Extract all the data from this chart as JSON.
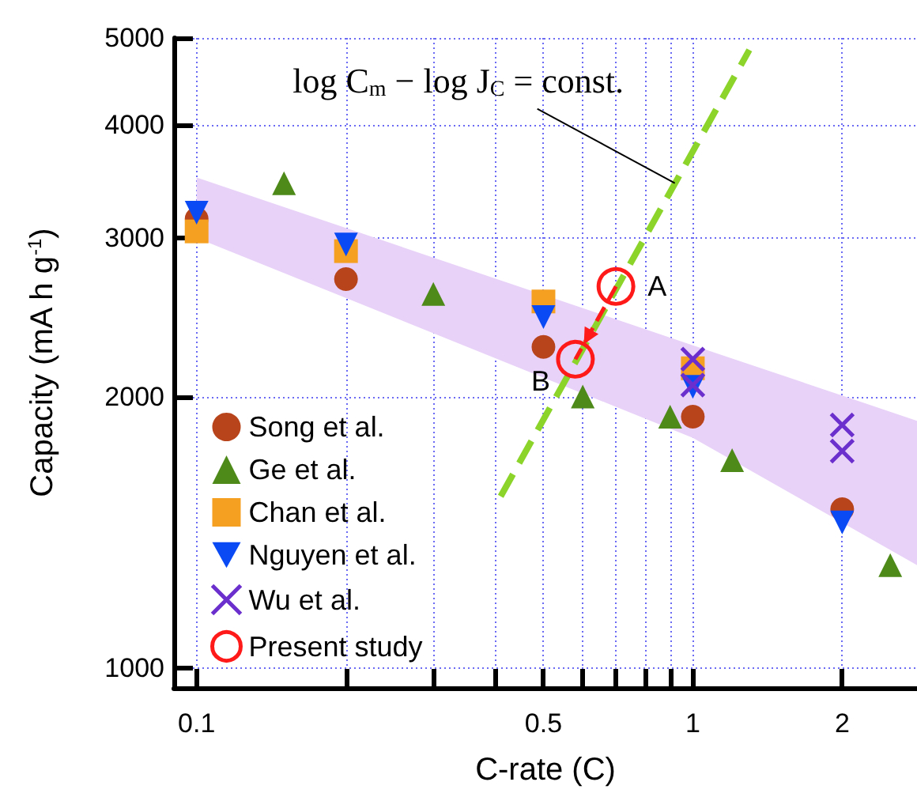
{
  "chart_data": {
    "type": "scatter",
    "xlabel": "C-rate (C)",
    "ylabel": "Capacity (mA h g$^{-1}$)",
    "log": "xy",
    "xlim": [
      0.09,
      2.83
    ],
    "ylim": [
      950,
      5000
    ],
    "xticks": [
      0.1,
      {
        "value": 0.2,
        "label": null
      },
      {
        "value": 0.3,
        "label": null
      },
      {
        "value": 0.4,
        "label": null
      },
      0.5,
      {
        "value": 0.6,
        "label": null
      },
      {
        "value": 0.7,
        "label": null
      },
      {
        "value": 0.8,
        "label": null
      },
      {
        "value": 0.9,
        "label": null
      },
      1,
      2
    ],
    "yticks": [
      1000,
      2000,
      3000,
      4000,
      5000
    ],
    "grid": true,
    "legend": "bottom left",
    "series": [
      {
        "type": "area",
        "color": "#e8d2f8",
        "x": [
          0.1,
          1,
          2.83
        ],
        "values": [
          null,
          null,
          null
        ],
        "lower": [
          3000,
          1800,
          1300
        ],
        "upper": [
          3500,
          2280,
          1880
        ]
      },
      {
        "type": "line",
        "color": "#8cd42a",
        "line_style": "dashed",
        "marker": "none",
        "x": [
          0.41,
          1.3
        ],
        "values": [
          1550,
          4850
        ]
      },
      {
        "name": "Song et al.",
        "color": "#b8441c",
        "marker": "circle",
        "x": [
          0.1,
          0.2,
          0.5,
          1,
          2
        ],
        "values": [
          3150,
          2700,
          2270,
          1900,
          1500
        ]
      },
      {
        "name": "Ge et al.",
        "color": "#4e8a1a",
        "marker": "triangle",
        "x": [
          0.15,
          0.3,
          0.6,
          0.9,
          1.2,
          2.5
        ],
        "values": [
          3450,
          2600,
          2000,
          1900,
          1700,
          1300
        ]
      },
      {
        "name": "Chan et al.",
        "color": "#f5a020",
        "marker": "square",
        "x": [
          0.1,
          0.2,
          0.5,
          1
        ],
        "values": [
          3050,
          2900,
          2550,
          2150
        ]
      },
      {
        "name": "Nguyen et al.",
        "color": "#0a4af5",
        "marker": "triangle-down",
        "x": [
          0.1,
          0.2,
          0.5,
          1,
          2
        ],
        "values": [
          3200,
          2950,
          2450,
          2050,
          1450
        ]
      },
      {
        "name": "Wu et al.",
        "color": "#6a2fcc",
        "marker": "cross",
        "x": [
          1,
          1,
          2,
          2
        ],
        "values": [
          2200,
          2060,
          1860,
          1740
        ]
      },
      {
        "name": "Present study",
        "type": "line",
        "color": "#ff1a1a",
        "marker": "circle",
        "line_style": "dashed",
        "x": [
          0.7,
          0.58
        ],
        "values": [
          2650,
          2200
        ]
      }
    ],
    "annotations": [
      {
        "text": "log C$_{m}$ − log J$_{C}$ = const.",
        "x": 0.92,
        "y": 3450
      },
      {
        "text": "A",
        "x": 0.7,
        "y": 2650
      },
      {
        "text": "B",
        "x": 0.58,
        "y": 2200
      }
    ]
  }
}
